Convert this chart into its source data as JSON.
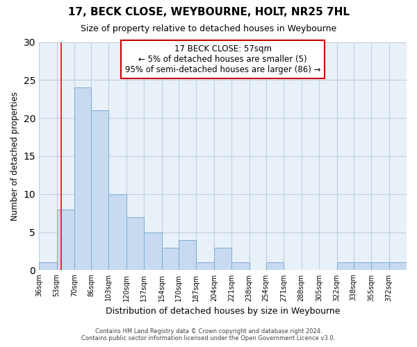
{
  "title": "17, BECK CLOSE, WEYBOURNE, HOLT, NR25 7HL",
  "subtitle": "Size of property relative to detached houses in Weybourne",
  "xlabel": "Distribution of detached houses by size in Weybourne",
  "ylabel": "Number of detached properties",
  "footer_line1": "Contains HM Land Registry data © Crown copyright and database right 2024.",
  "footer_line2": "Contains public sector information licensed under the Open Government Licence v3.0.",
  "annotation_line1": "17 BECK CLOSE: 57sqm",
  "annotation_line2": "← 5% of detached houses are smaller (5)",
  "annotation_line3": "95% of semi-detached houses are larger (86) →",
  "bin_labels": [
    "36sqm",
    "53sqm",
    "70sqm",
    "86sqm",
    "103sqm",
    "120sqm",
    "137sqm",
    "154sqm",
    "170sqm",
    "187sqm",
    "204sqm",
    "221sqm",
    "238sqm",
    "254sqm",
    "271sqm",
    "288sqm",
    "305sqm",
    "322sqm",
    "338sqm",
    "355sqm",
    "372sqm"
  ],
  "bin_edges": [
    36,
    53,
    70,
    86,
    103,
    120,
    137,
    154,
    170,
    187,
    204,
    221,
    238,
    254,
    271,
    288,
    305,
    322,
    338,
    355,
    372,
    389
  ],
  "bar_heights": [
    1,
    8,
    24,
    21,
    10,
    7,
    5,
    3,
    4,
    1,
    3,
    1,
    0,
    1,
    0,
    0,
    0,
    1,
    1,
    1,
    1
  ],
  "bar_color": "#c8daf0",
  "bar_edge_color": "#7aadd4",
  "red_line_x": 57,
  "ylim": [
    0,
    30
  ],
  "yticks": [
    0,
    5,
    10,
    15,
    20,
    25,
    30
  ],
  "annotation_box_color": "#ffffff",
  "annotation_box_edge_color": "#cc0000",
  "background_color": "#ffffff",
  "axes_bg_color": "#e8f0f8",
  "grid_color": "#c0cfe0"
}
